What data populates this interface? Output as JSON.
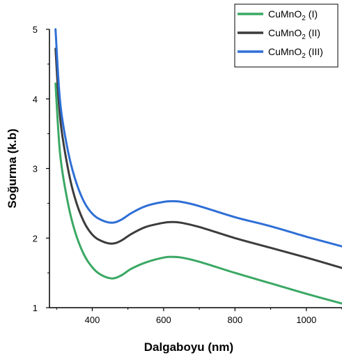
{
  "chart_data": {
    "type": "line",
    "title": "",
    "xlabel": "Dalgaboyu (nm)",
    "ylabel": "Soğurma (k.b)",
    "xlim": [
      280,
      1100
    ],
    "ylim": [
      1,
      5
    ],
    "xticks": [
      400,
      600,
      800,
      1000
    ],
    "yticks": [
      1,
      2,
      3,
      4,
      5
    ],
    "grid": false,
    "legend_position": "top-right",
    "series": [
      {
        "name_main": "CuMnO",
        "name_sub": "2",
        "name_suffix": "(I)",
        "color": "#3aa864",
        "x": [
          297,
          310,
          330,
          350,
          375,
          400,
          425,
          455,
          480,
          510,
          550,
          600,
          625,
          650,
          700,
          800,
          900,
          1000,
          1100
        ],
        "y": [
          4.22,
          3.2,
          2.55,
          2.12,
          1.78,
          1.58,
          1.47,
          1.42,
          1.46,
          1.56,
          1.65,
          1.72,
          1.73,
          1.72,
          1.66,
          1.5,
          1.35,
          1.2,
          1.06
        ]
      },
      {
        "name_main": "CuMnO",
        "name_sub": "2",
        "name_suffix": "(II)",
        "color": "#3c3c3c",
        "x": [
          297,
          310,
          330,
          350,
          375,
          400,
          425,
          455,
          480,
          510,
          550,
          600,
          625,
          650,
          700,
          800,
          900,
          1000,
          1100
        ],
        "y": [
          4.72,
          3.72,
          3.05,
          2.6,
          2.25,
          2.05,
          1.96,
          1.92,
          1.96,
          2.06,
          2.16,
          2.22,
          2.23,
          2.22,
          2.16,
          2.0,
          1.86,
          1.72,
          1.57
        ]
      },
      {
        "name_main": "CuMnO",
        "name_sub": "2",
        "name_suffix": "(III)",
        "color": "#2f6fd6",
        "x": [
          297,
          310,
          330,
          350,
          375,
          400,
          425,
          455,
          480,
          510,
          550,
          600,
          625,
          650,
          700,
          800,
          900,
          1000,
          1100
        ],
        "y": [
          5.0,
          3.95,
          3.3,
          2.88,
          2.54,
          2.35,
          2.26,
          2.22,
          2.26,
          2.36,
          2.46,
          2.52,
          2.53,
          2.52,
          2.46,
          2.3,
          2.17,
          2.02,
          1.88
        ]
      }
    ]
  }
}
